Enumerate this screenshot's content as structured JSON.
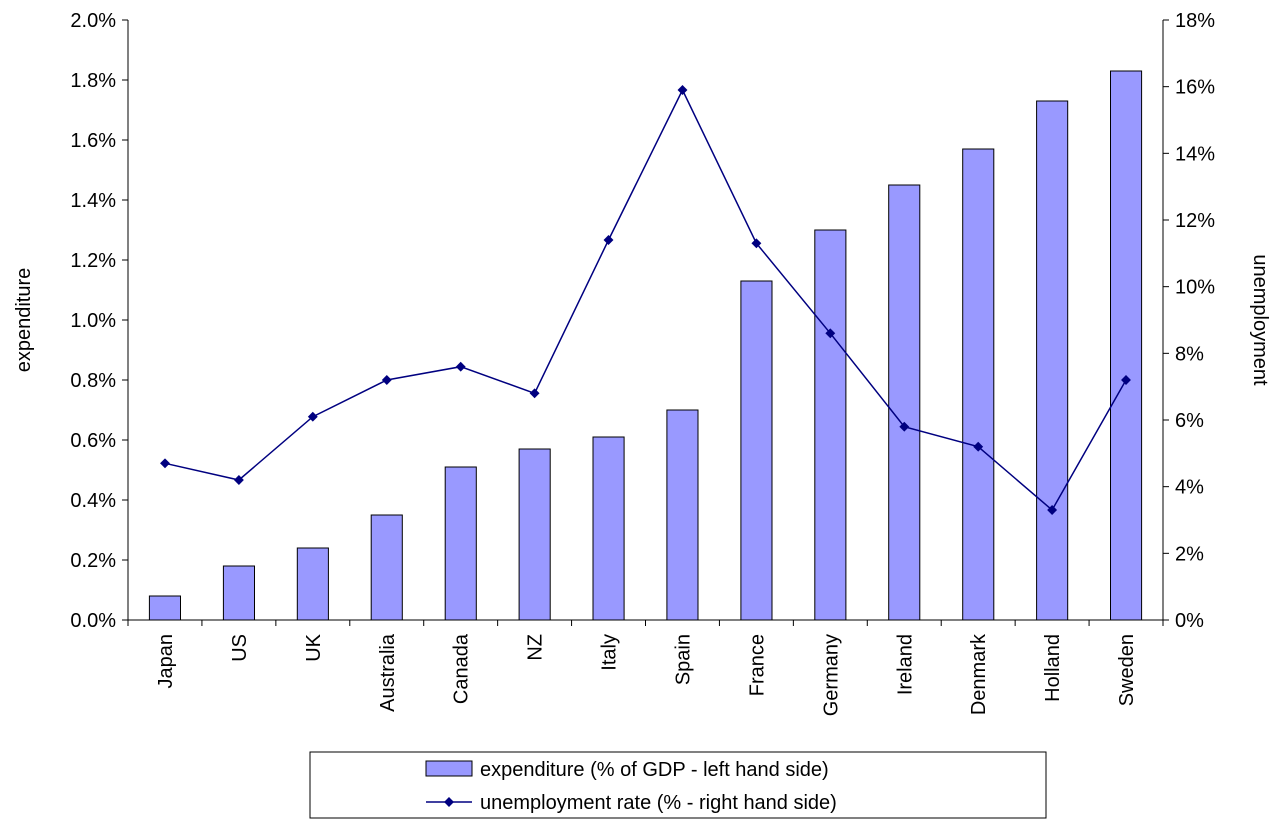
{
  "chart_data": {
    "type": "bar",
    "categories": [
      "Japan",
      "US",
      "UK",
      "Australia",
      "Canada",
      "NZ",
      "Italy",
      "Spain",
      "France",
      "Germany",
      "Ireland",
      "Denmark",
      "Holland",
      "Sweden"
    ],
    "series": [
      {
        "name": "expenditure (% of GDP - left hand side)",
        "type": "bar",
        "axis": "left",
        "values": [
          0.08,
          0.18,
          0.24,
          0.35,
          0.51,
          0.57,
          0.61,
          0.7,
          1.13,
          1.3,
          1.45,
          1.57,
          1.73,
          1.83
        ],
        "color": "#9999FF"
      },
      {
        "name": "unemployment rate (% - right hand side)",
        "type": "line",
        "axis": "right",
        "values": [
          4.7,
          4.2,
          6.1,
          7.2,
          7.6,
          6.8,
          11.4,
          15.9,
          11.3,
          8.6,
          5.8,
          5.2,
          3.3,
          7.2
        ],
        "color": "#000080"
      }
    ],
    "ylabel": "expenditure",
    "y2label": "unemployment",
    "ylim": [
      0,
      2.0
    ],
    "y2lim": [
      0,
      18
    ],
    "yticks": [
      "0.0%",
      "0.2%",
      "0.4%",
      "0.6%",
      "0.8%",
      "1.0%",
      "1.2%",
      "1.4%",
      "1.6%",
      "1.8%",
      "2.0%"
    ],
    "y2ticks": [
      "0%",
      "2%",
      "4%",
      "6%",
      "8%",
      "10%",
      "12%",
      "14%",
      "16%",
      "18%"
    ],
    "grid": false,
    "legend_position": "bottom"
  }
}
